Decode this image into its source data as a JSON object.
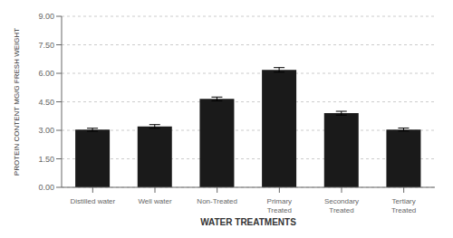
{
  "chart_data": {
    "type": "bar",
    "categories": [
      "Distilled water",
      "Well water",
      "Non-Treated",
      "Primary\nTreated",
      "Secondary\nTreated",
      "Tertiary\nTreated"
    ],
    "values": [
      3.03,
      3.2,
      4.65,
      6.18,
      3.9,
      3.04
    ],
    "errors": [
      0.08,
      0.1,
      0.1,
      0.12,
      0.1,
      0.08
    ],
    "color": "#1a1a1a",
    "xlabel": "WATER TREATMENTS",
    "ylabel": "PROTEIN CONTENT MG/G FRESH WEIGHT",
    "ylim": [
      0.0,
      9.0
    ],
    "yticks": [
      {
        "value": 0.0,
        "label": "0.00"
      },
      {
        "value": 1.5,
        "label": "1.50"
      },
      {
        "value": 3.0,
        "label": "3.00"
      },
      {
        "value": 4.5,
        "label": "4.50"
      },
      {
        "value": 6.0,
        "label": "6.00"
      },
      {
        "value": 7.5,
        "label": "7.50"
      },
      {
        "value": 9.0,
        "label": "9.00"
      }
    ],
    "grid": true
  }
}
